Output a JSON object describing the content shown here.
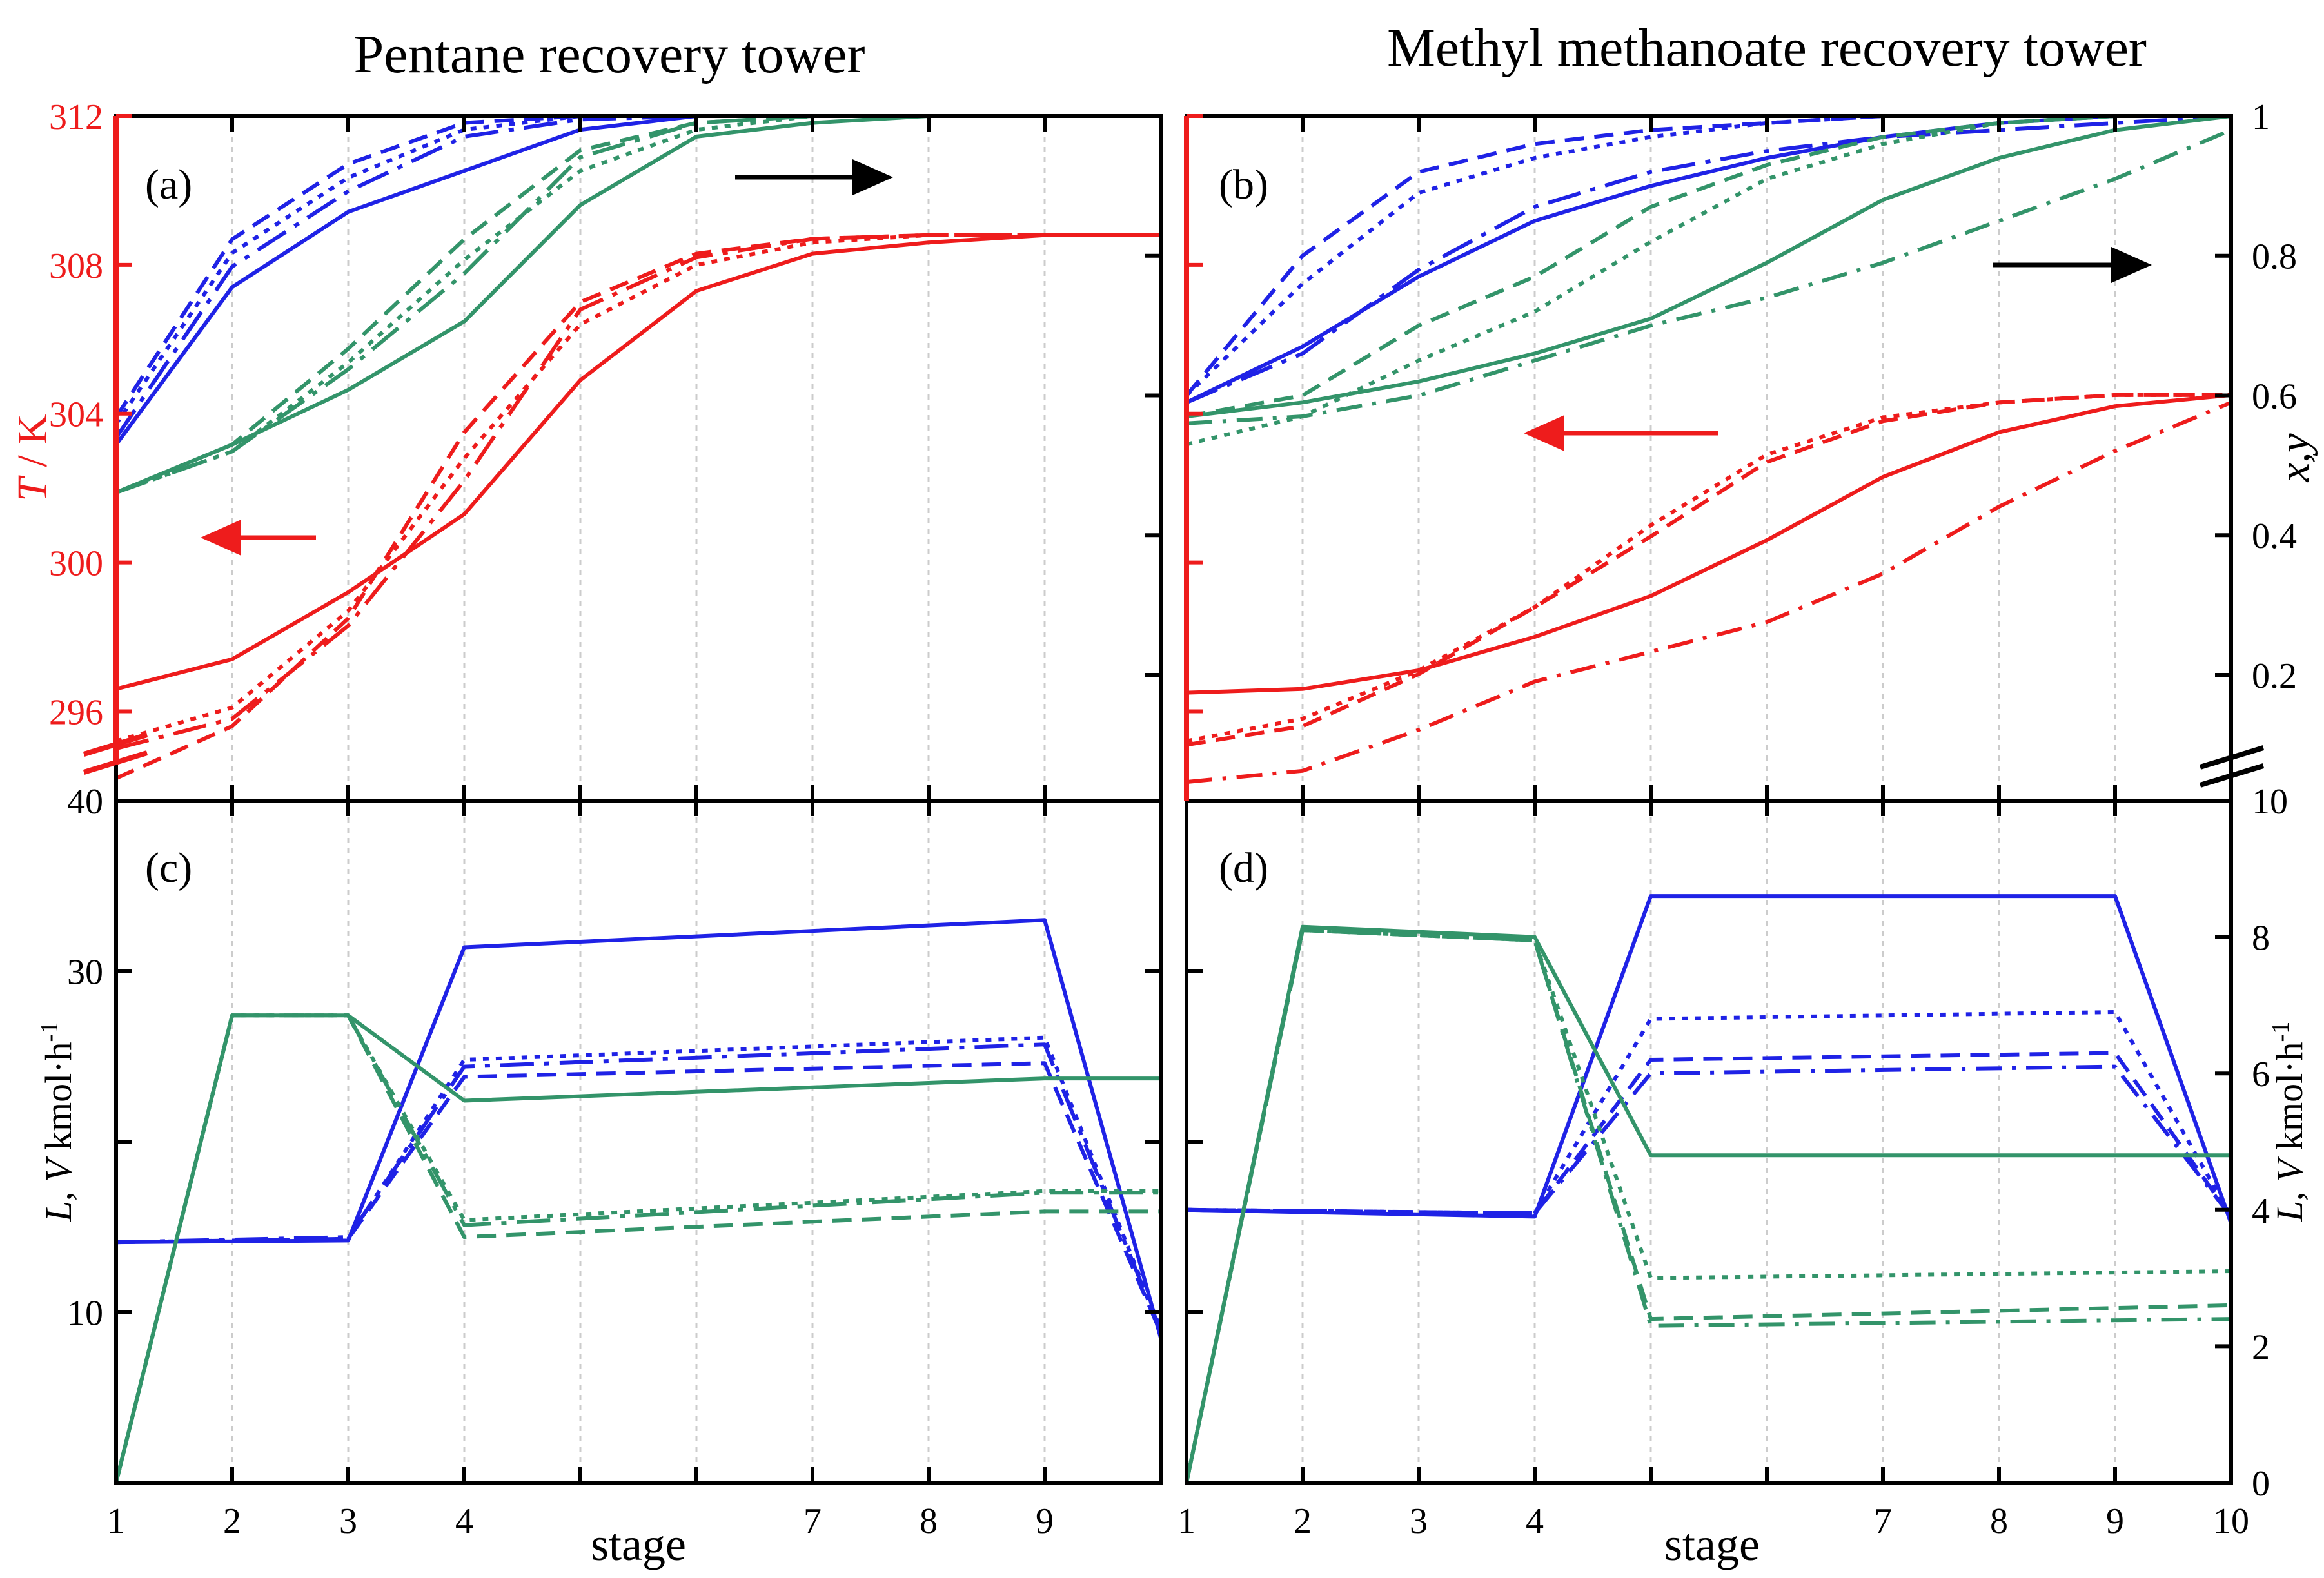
{
  "titles": {
    "left": "Pentane recovery tower",
    "right": "Methyl methanoate recovery tower"
  },
  "colors": {
    "blue": "#1f22e6",
    "green": "#33946a",
    "red": "#ee1c1c",
    "black": "#000000"
  },
  "axes": {
    "t_label_italic": "T",
    "t_label_rest": " / K",
    "xy_label": "x,y",
    "lv_label_L": "L",
    "lv_label_mid": ", ",
    "lv_label_V": "V",
    "lv_label_unit": " kmol·h",
    "lv_label_exp": "-1",
    "stage_label": "stage",
    "t_ticks": [
      "312",
      "308",
      "304",
      "300",
      "296"
    ],
    "t_break_label": "40",
    "lv_left_ticks": [
      "30",
      "10"
    ],
    "xy_ticks": [
      "1",
      "0.8",
      "0.6",
      "0.4",
      "0.2"
    ],
    "xy_break_label": "10",
    "lv_right_ticks": [
      "8",
      "6",
      "4",
      "2",
      "0"
    ],
    "x_ticks_left": [
      "1",
      "2",
      "3",
      "4",
      "7",
      "8",
      "9"
    ],
    "x_ticks_left_stages": [
      1,
      2,
      3,
      4,
      7,
      8,
      9
    ],
    "x_ticks_right": [
      "1",
      "2",
      "3",
      "4",
      "7",
      "8",
      "9",
      "10"
    ],
    "x_ticks_right_stages": [
      1,
      2,
      3,
      4,
      7,
      8,
      9,
      10
    ]
  },
  "panel_labels": {
    "a": "(a)",
    "b": "(b)",
    "c": "(c)",
    "d": "(d)"
  },
  "chart_data": [
    {
      "panel": "(a)",
      "type": "line",
      "xlim": [
        1,
        10
      ],
      "y_left_ticks": [
        296,
        300,
        304,
        308,
        312
      ],
      "y_left_range": [
        293.6,
        312
      ],
      "y_right_range": [
        0,
        1
      ],
      "series": [
        {
          "axis": "right",
          "color": "blue",
          "dash": "solid",
          "x": [
            1,
            2,
            3,
            4,
            5,
            6,
            7,
            8,
            9,
            10
          ],
          "y": [
            0.52,
            0.75,
            0.86,
            0.92,
            0.98,
            1.0,
            1.0,
            1.0,
            1.0,
            1.0
          ]
        },
        {
          "axis": "right",
          "color": "blue",
          "dash": "dash",
          "x": [
            1,
            2,
            3,
            4,
            5,
            6,
            7,
            8,
            9,
            10
          ],
          "y": [
            0.56,
            0.82,
            0.93,
            0.99,
            1.0,
            1.0,
            1.0,
            1.0,
            1.0,
            1.0
          ]
        },
        {
          "axis": "right",
          "color": "blue",
          "dash": "dot",
          "x": [
            1,
            2,
            3,
            4,
            5,
            6,
            7,
            8,
            9,
            10
          ],
          "y": [
            0.55,
            0.8,
            0.91,
            0.98,
            1.0,
            1.0,
            1.0,
            1.0,
            1.0,
            1.0
          ]
        },
        {
          "axis": "right",
          "color": "blue",
          "dash": "longdash",
          "x": [
            1,
            2,
            3,
            4,
            5,
            6,
            7,
            8,
            9,
            10
          ],
          "y": [
            0.53,
            0.78,
            0.89,
            0.97,
            0.995,
            1.0,
            1.0,
            1.0,
            1.0,
            1.0
          ]
        },
        {
          "axis": "right",
          "color": "green",
          "dash": "solid",
          "x": [
            1,
            2,
            3,
            4,
            5,
            6,
            7,
            8,
            9,
            10
          ],
          "y": [
            0.45,
            0.52,
            0.6,
            0.7,
            0.87,
            0.97,
            0.99,
            1.0,
            1.0,
            1.0
          ]
        },
        {
          "axis": "right",
          "color": "green",
          "dash": "dash",
          "x": [
            1,
            2,
            3,
            4,
            5,
            6,
            7,
            8,
            9,
            10
          ],
          "y": [
            0.45,
            0.52,
            0.66,
            0.82,
            0.95,
            0.99,
            1.0,
            1.0,
            1.0,
            1.0
          ]
        },
        {
          "axis": "right",
          "color": "green",
          "dash": "dot",
          "x": [
            1,
            2,
            3,
            4,
            5,
            6,
            7,
            8,
            9,
            10
          ],
          "y": [
            0.45,
            0.51,
            0.64,
            0.79,
            0.92,
            0.98,
            1.0,
            1.0,
            1.0,
            1.0
          ]
        },
        {
          "axis": "right",
          "color": "green",
          "dash": "longdash",
          "x": [
            1,
            2,
            3,
            4,
            5,
            6,
            7,
            8,
            9,
            10
          ],
          "y": [
            0.45,
            0.51,
            0.63,
            0.77,
            0.94,
            0.99,
            1.0,
            1.0,
            1.0,
            1.0
          ]
        },
        {
          "axis": "left",
          "color": "red",
          "dash": "solid",
          "x": [
            1,
            2,
            3,
            4,
            5,
            6,
            7,
            8,
            9,
            10
          ],
          "y": [
            296.6,
            297.4,
            299.2,
            301.3,
            304.9,
            307.3,
            308.3,
            308.6,
            308.8,
            308.8
          ]
        },
        {
          "axis": "left",
          "color": "red",
          "dash": "dash",
          "x": [
            1,
            2,
            3,
            4,
            5,
            6,
            7,
            8,
            9,
            10
          ],
          "y": [
            294.2,
            295.6,
            298.5,
            303.5,
            307.0,
            308.3,
            308.7,
            308.8,
            308.8,
            308.8
          ]
        },
        {
          "axis": "left",
          "color": "red",
          "dash": "dot",
          "x": [
            1,
            2,
            3,
            4,
            5,
            6,
            7,
            8,
            9,
            10
          ],
          "y": [
            295.2,
            296.1,
            298.7,
            302.8,
            306.4,
            308.0,
            308.6,
            308.8,
            308.8,
            308.8
          ]
        },
        {
          "axis": "left",
          "color": "red",
          "dash": "longdash",
          "x": [
            1,
            2,
            3,
            4,
            5,
            6,
            7,
            8,
            9,
            10
          ],
          "y": [
            295.0,
            295.8,
            298.3,
            302.2,
            306.8,
            308.2,
            308.7,
            308.8,
            308.8,
            308.8
          ]
        }
      ]
    },
    {
      "panel": "(b)",
      "type": "line",
      "xlim": [
        1,
        10
      ],
      "y_right_ticks": [
        0.2,
        0.4,
        0.6,
        0.8,
        1
      ],
      "y_right_range": [
        0.02,
        1
      ],
      "y_left_range": [
        293.6,
        312
      ],
      "series": [
        {
          "axis": "right",
          "color": "blue",
          "dash": "solid",
          "x": [
            1,
            2,
            3,
            4,
            5,
            6,
            7,
            8,
            9,
            10
          ],
          "y": [
            0.59,
            0.67,
            0.77,
            0.85,
            0.9,
            0.94,
            0.97,
            0.99,
            1.0,
            1.0
          ]
        },
        {
          "axis": "right",
          "color": "blue",
          "dash": "dash",
          "x": [
            1,
            2,
            3,
            4,
            5,
            6,
            7,
            8,
            9,
            10
          ],
          "y": [
            0.6,
            0.8,
            0.92,
            0.96,
            0.98,
            0.99,
            1.0,
            1.0,
            1.0,
            1.0
          ]
        },
        {
          "axis": "right",
          "color": "blue",
          "dash": "dot",
          "x": [
            1,
            2,
            3,
            4,
            5,
            6,
            7,
            8,
            9,
            10
          ],
          "y": [
            0.6,
            0.76,
            0.89,
            0.94,
            0.97,
            0.99,
            1.0,
            1.0,
            1.0,
            1.0
          ]
        },
        {
          "axis": "right",
          "color": "blue",
          "dash": "longdash",
          "x": [
            1,
            2,
            3,
            4,
            5,
            6,
            7,
            8,
            9,
            10
          ],
          "y": [
            0.59,
            0.66,
            0.78,
            0.87,
            0.92,
            0.95,
            0.97,
            0.98,
            0.99,
            1.0
          ]
        },
        {
          "axis": "right",
          "color": "green",
          "dash": "solid",
          "x": [
            1,
            2,
            3,
            4,
            5,
            6,
            7,
            8,
            9,
            10
          ],
          "y": [
            0.57,
            0.59,
            0.62,
            0.66,
            0.71,
            0.79,
            0.88,
            0.94,
            0.98,
            1.0
          ]
        },
        {
          "axis": "right",
          "color": "green",
          "dash": "dash",
          "x": [
            1,
            2,
            3,
            4,
            5,
            6,
            7,
            8,
            9,
            10
          ],
          "y": [
            0.57,
            0.6,
            0.7,
            0.77,
            0.87,
            0.93,
            0.97,
            0.99,
            1.0,
            1.0
          ]
        },
        {
          "axis": "right",
          "color": "green",
          "dash": "dot",
          "x": [
            1,
            2,
            3,
            4,
            5,
            6,
            7,
            8,
            9,
            10
          ],
          "y": [
            0.53,
            0.57,
            0.65,
            0.72,
            0.82,
            0.91,
            0.96,
            0.99,
            1.0,
            1.0
          ]
        },
        {
          "axis": "right",
          "color": "green",
          "dash": "dashdot",
          "x": [
            1,
            2,
            3,
            4,
            5,
            6,
            7,
            8,
            9,
            10
          ],
          "y": [
            0.56,
            0.57,
            0.6,
            0.65,
            0.7,
            0.74,
            0.79,
            0.85,
            0.91,
            0.98
          ]
        },
        {
          "axis": "left",
          "color": "red",
          "dash": "solid",
          "x": [
            1,
            2,
            3,
            4,
            5,
            6,
            7,
            8,
            9,
            10
          ],
          "y": [
            296.5,
            296.6,
            297.1,
            298.0,
            299.1,
            300.6,
            302.3,
            303.5,
            304.2,
            304.5
          ]
        },
        {
          "axis": "left",
          "color": "red",
          "dash": "dash",
          "x": [
            1,
            2,
            3,
            4,
            5,
            6,
            7,
            8,
            9,
            10
          ],
          "y": [
            295.1,
            295.6,
            297.0,
            298.8,
            300.7,
            302.7,
            303.8,
            304.3,
            304.5,
            304.5
          ]
        },
        {
          "axis": "left",
          "color": "red",
          "dash": "dot",
          "x": [
            1,
            2,
            3,
            4,
            5,
            6,
            7,
            8,
            9,
            10
          ],
          "y": [
            295.2,
            295.8,
            297.1,
            298.8,
            301.0,
            302.9,
            303.9,
            304.3,
            304.5,
            304.5
          ]
        },
        {
          "axis": "left",
          "color": "red",
          "dash": "dashdot",
          "x": [
            1,
            2,
            3,
            4,
            5,
            6,
            7,
            8,
            9,
            10
          ],
          "y": [
            294.1,
            294.4,
            295.5,
            296.8,
            297.6,
            298.4,
            299.7,
            301.5,
            303.0,
            304.3
          ]
        }
      ]
    },
    {
      "panel": "(c)",
      "type": "line",
      "xlim": [
        1,
        10
      ],
      "y_left_ticks": [
        10,
        30
      ],
      "y_left_range": [
        0,
        40
      ],
      "series": [
        {
          "color": "blue",
          "dash": "solid",
          "x": [
            1,
            3,
            4,
            9,
            10
          ],
          "y": [
            14.1,
            14.2,
            31.4,
            33.0,
            8.5
          ]
        },
        {
          "color": "blue",
          "dash": "dash",
          "x": [
            1,
            3,
            4,
            9,
            10
          ],
          "y": [
            14.1,
            14.3,
            23.8,
            24.6,
            8.8
          ]
        },
        {
          "color": "blue",
          "dash": "dot",
          "x": [
            1,
            3,
            4,
            9,
            10
          ],
          "y": [
            14.1,
            14.3,
            24.8,
            26.1,
            9.0
          ]
        },
        {
          "color": "blue",
          "dash": "longdash",
          "x": [
            1,
            3,
            4,
            9,
            10
          ],
          "y": [
            14.1,
            14.4,
            24.4,
            25.7,
            8.9
          ]
        },
        {
          "color": "green",
          "dash": "solid",
          "x": [
            1,
            2,
            3,
            4,
            9,
            10
          ],
          "y": [
            0.0,
            27.4,
            27.4,
            22.4,
            23.7,
            23.7
          ]
        },
        {
          "color": "green",
          "dash": "dash",
          "x": [
            1,
            2,
            3,
            4,
            9,
            10
          ],
          "y": [
            0.0,
            27.4,
            27.4,
            14.4,
            15.9,
            15.9
          ]
        },
        {
          "color": "green",
          "dash": "dot",
          "x": [
            1,
            2,
            3,
            4,
            9,
            10
          ],
          "y": [
            0.0,
            27.4,
            27.4,
            15.4,
            17.1,
            17.1
          ]
        },
        {
          "color": "green",
          "dash": "longdash",
          "x": [
            1,
            2,
            3,
            4,
            9,
            10
          ],
          "y": [
            0.0,
            27.4,
            27.4,
            15.1,
            17.0,
            17.0
          ]
        }
      ]
    },
    {
      "panel": "(d)",
      "type": "line",
      "xlim": [
        1,
        10
      ],
      "y_right_ticks": [
        0,
        2,
        4,
        6,
        8,
        10
      ],
      "y_right_range": [
        0,
        10
      ],
      "series": [
        {
          "color": "blue",
          "dash": "solid",
          "x": [
            1,
            4,
            5,
            9,
            10
          ],
          "y": [
            4.0,
            3.9,
            8.6,
            8.6,
            3.8
          ]
        },
        {
          "color": "blue",
          "dash": "dash",
          "x": [
            1,
            4,
            5,
            9,
            10
          ],
          "y": [
            4.0,
            3.95,
            6.2,
            6.3,
            3.9
          ]
        },
        {
          "color": "blue",
          "dash": "dot",
          "x": [
            1,
            4,
            5,
            9,
            10
          ],
          "y": [
            4.0,
            3.95,
            6.8,
            6.9,
            3.9
          ]
        },
        {
          "color": "blue",
          "dash": "dashdot",
          "x": [
            1,
            4,
            5,
            9,
            10
          ],
          "y": [
            4.0,
            3.95,
            6.0,
            6.1,
            3.9
          ]
        },
        {
          "color": "green",
          "dash": "solid",
          "x": [
            1,
            2,
            4,
            5,
            10
          ],
          "y": [
            0.0,
            8.15,
            8.0,
            4.8,
            4.8
          ]
        },
        {
          "color": "green",
          "dash": "dash",
          "x": [
            1,
            2,
            4,
            5,
            10
          ],
          "y": [
            0.0,
            8.1,
            7.95,
            2.4,
            2.6
          ]
        },
        {
          "color": "green",
          "dash": "dot",
          "x": [
            1,
            2,
            4,
            5,
            10
          ],
          "y": [
            0.0,
            8.1,
            7.95,
            3.0,
            3.1
          ]
        },
        {
          "color": "green",
          "dash": "dashdot",
          "x": [
            1,
            2,
            4,
            5,
            10
          ],
          "y": [
            0.0,
            8.1,
            7.95,
            2.3,
            2.4
          ]
        }
      ]
    }
  ],
  "arrows": [
    {
      "panel": "(a)",
      "color": "black",
      "direction": "right"
    },
    {
      "panel": "(a)",
      "color": "red",
      "direction": "left"
    },
    {
      "panel": "(b)",
      "color": "black",
      "direction": "right"
    },
    {
      "panel": "(b)",
      "color": "red",
      "direction": "left"
    }
  ]
}
